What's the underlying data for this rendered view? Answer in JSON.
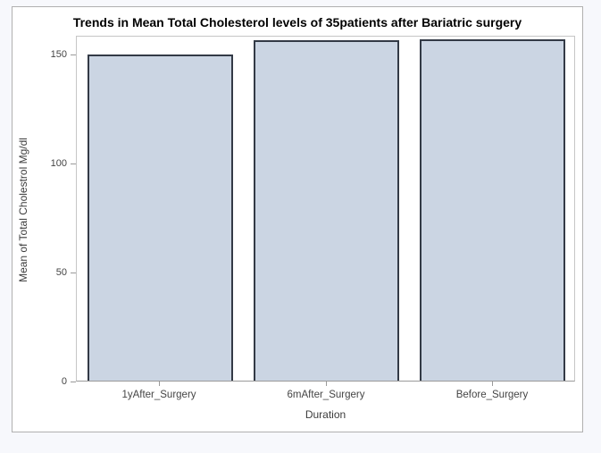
{
  "page": {
    "background": "#f7f8fc"
  },
  "figure": {
    "background": "#ffffff",
    "border_color": "#b0b0b0"
  },
  "chart_data": {
    "type": "bar",
    "title": "Trends in Mean Total Cholesterol levels of 35patients after Bariatric surgery",
    "xlabel": "Duration",
    "ylabel": "Mean of Total Cholestrol Mg/dl",
    "categories": [
      "1yAfter_Surgery",
      "6mAfter_Surgery",
      "Before_Surgery"
    ],
    "values": [
      149.4,
      156.1,
      156.4
    ],
    "yticks": [
      0,
      50,
      100,
      150
    ],
    "ylim": [
      0,
      158.6
    ],
    "grid": false,
    "legend": false,
    "bar_fill": "#cbd5e3",
    "bar_border": "#333a46",
    "frame_color": "#c6c6c6",
    "axis_color": "#9a9a9a",
    "tick_label_color": "#444444",
    "axis_title_color": "#3c3c3c",
    "title_color": "#000000"
  }
}
